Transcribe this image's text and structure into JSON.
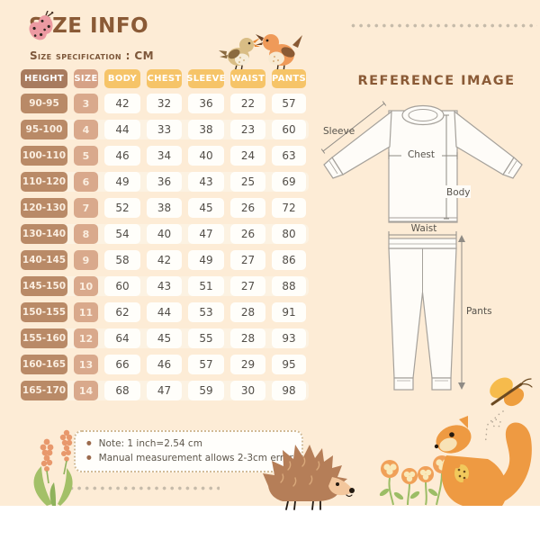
{
  "title": {
    "text": "SIZE INFO"
  },
  "subtitle": "Size specification : CM",
  "table": {
    "columns": [
      "HEIGHT",
      "SIZE",
      "BODY",
      "CHEST",
      "SLEEVE",
      "WAIST",
      "PANTS"
    ],
    "rows": [
      [
        "90-95",
        "3",
        "42",
        "32",
        "36",
        "22",
        "57"
      ],
      [
        "95-100",
        "4",
        "44",
        "33",
        "38",
        "23",
        "60"
      ],
      [
        "100-110",
        "5",
        "46",
        "34",
        "40",
        "24",
        "63"
      ],
      [
        "110-120",
        "6",
        "49",
        "36",
        "43",
        "25",
        "69"
      ],
      [
        "120-130",
        "7",
        "52",
        "38",
        "45",
        "26",
        "72"
      ],
      [
        "130-140",
        "8",
        "54",
        "40",
        "47",
        "26",
        "80"
      ],
      [
        "140-145",
        "9",
        "58",
        "42",
        "49",
        "27",
        "86"
      ],
      [
        "145-150",
        "10",
        "60",
        "43",
        "51",
        "27",
        "88"
      ],
      [
        "150-155",
        "11",
        "62",
        "44",
        "53",
        "28",
        "91"
      ],
      [
        "155-160",
        "12",
        "64",
        "45",
        "55",
        "28",
        "93"
      ],
      [
        "160-165",
        "13",
        "66",
        "46",
        "57",
        "29",
        "95"
      ],
      [
        "165-170",
        "14",
        "68",
        "47",
        "59",
        "30",
        "98"
      ]
    ]
  },
  "reference": {
    "title": "REFERENCE IMAGE",
    "labels": {
      "sleeve": "Sleeve",
      "chest": "Chest",
      "body": "Body",
      "waist": "Waist",
      "pants": "Pants"
    }
  },
  "notes": {
    "items": [
      "Note: 1 inch=2.54 cm",
      "Manual measurement allows 2-3cm error"
    ]
  },
  "colors": {
    "background": "#fdecd6",
    "accent_brown": "#8a5a36",
    "header_height": "#a87b5e",
    "header_size": "#d6a286",
    "header_values": "#f6c468",
    "cell_height": "#b98a67",
    "cell_size": "#d9a98c",
    "cell_value_bg": "#fffefa",
    "row_band": "#fcf2e2"
  },
  "icons": [
    "ladybug-icon",
    "birds-icon",
    "butterfly-icon",
    "hedgehog-icon",
    "squirrel-icon",
    "flowers-icon",
    "lavender-icon"
  ]
}
